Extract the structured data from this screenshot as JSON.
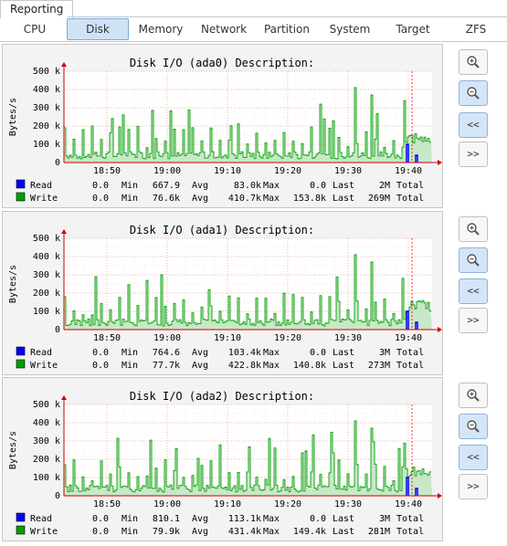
{
  "app": {
    "top_tab": "Reporting"
  },
  "tabs": [
    {
      "label": "CPU"
    },
    {
      "label": "Disk"
    },
    {
      "label": "Memory"
    },
    {
      "label": "Network"
    },
    {
      "label": "Partition"
    },
    {
      "label": "System"
    },
    {
      "label": "Target"
    },
    {
      "label": "ZFS"
    }
  ],
  "active_tab": "Disk",
  "watermark": "RRDTOOL / TOBI OETIKER",
  "side_buttons": {
    "back": "<<",
    "forward": ">>"
  },
  "colors": {
    "read": "#0000ff",
    "write": "#00a000",
    "axis": "#cc0000",
    "grid": "#e9a0a0"
  },
  "chart_data": [
    {
      "type": "area",
      "title": "Disk I/O (ada0) Description:",
      "ylabel": "Bytes/s",
      "ylim": [
        0,
        500000
      ],
      "yticks": [
        "0",
        "100 k",
        "200 k",
        "300 k",
        "400 k",
        "500 k"
      ],
      "xticks": [
        "18:50",
        "19:00",
        "19:10",
        "19:20",
        "19:30",
        "19:40"
      ],
      "legend": [
        {
          "name": "Read",
          "current": "0.0",
          "min": "667.9",
          "avg": "83.0k",
          "max": "0.0",
          "last": "2M",
          "total_label": "Total"
        },
        {
          "name": "Write",
          "current": "0.0",
          "min": "76.6k",
          "avg": "410.7k",
          "max": "153.8k",
          "last": "269M",
          "total_label": "Total"
        }
      ]
    },
    {
      "type": "area",
      "title": "Disk I/O (ada1) Description:",
      "ylabel": "Bytes/s",
      "ylim": [
        0,
        500000
      ],
      "yticks": [
        "0",
        "100 k",
        "200 k",
        "300 k",
        "400 k",
        "500 k"
      ],
      "xticks": [
        "18:50",
        "19:00",
        "19:10",
        "19:20",
        "19:30",
        "19:40"
      ],
      "legend": [
        {
          "name": "Read",
          "current": "0.0",
          "min": "764.6",
          "avg": "103.4k",
          "max": "0.0",
          "last": "3M",
          "total_label": "Total"
        },
        {
          "name": "Write",
          "current": "0.0",
          "min": "77.7k",
          "avg": "422.8k",
          "max": "140.8k",
          "last": "273M",
          "total_label": "Total"
        }
      ]
    },
    {
      "type": "area",
      "title": "Disk I/O (ada2) Description:",
      "ylabel": "Bytes/s",
      "ylim": [
        0,
        500000
      ],
      "yticks": [
        "0",
        "100 k",
        "200 k",
        "300 k",
        "400 k",
        "500 k"
      ],
      "xticks": [
        "18:50",
        "19:00",
        "19:10",
        "19:20",
        "19:30",
        "19:40"
      ],
      "legend": [
        {
          "name": "Read",
          "current": "0.0",
          "min": "810.1",
          "avg": "113.1k",
          "max": "0.0",
          "last": "3M",
          "total_label": "Total"
        },
        {
          "name": "Write",
          "current": "0.0",
          "min": "79.9k",
          "avg": "431.4k",
          "max": "149.4k",
          "last": "281M",
          "total_label": "Total"
        }
      ]
    }
  ]
}
